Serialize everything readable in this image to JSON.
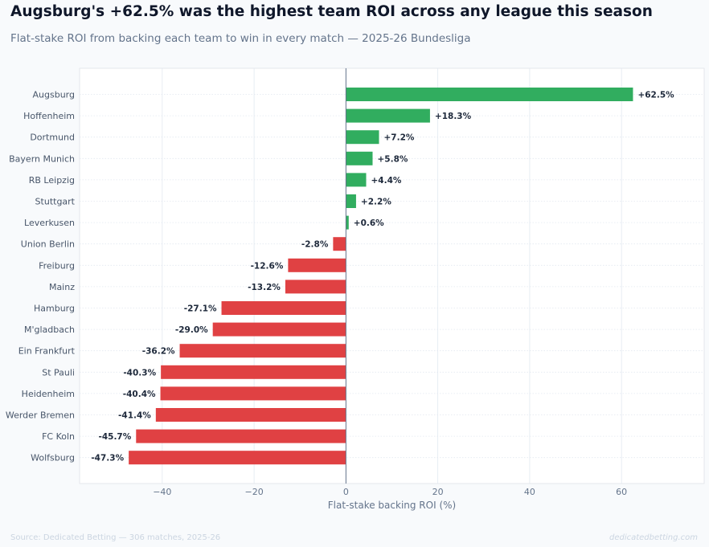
{
  "header": {
    "title": "Augsburg's +62.5% was the highest team ROI across any league this season",
    "subtitle": "Flat-stake ROI from backing each team to win in every match — 2025-26 Bundesliga"
  },
  "footer": {
    "source": "Source: Dedicated Betting — 306 matches, 2025-26",
    "brand": "dedicatedbetting.com"
  },
  "colors": {
    "positive": "#31ad5f",
    "negative": "#e04143",
    "grid": "#e2e8f0",
    "zero_line": "#64748b"
  },
  "chart_data": {
    "type": "bar",
    "orientation": "horizontal",
    "title": "Augsburg's +62.5% was the highest team ROI across any league this season",
    "subtitle": "Flat-stake ROI from backing each team to win in every match — 2025-26 Bundesliga",
    "xlabel": "Flat-stake backing ROI (%)",
    "ylabel": "",
    "xlim": [
      -58,
      78
    ],
    "xticks": [
      -40,
      -20,
      0,
      20,
      40,
      60
    ],
    "xtick_labels": [
      "−40",
      "−20",
      "0",
      "20",
      "40",
      "60"
    ],
    "grid": true,
    "categories": [
      "Augsburg",
      "Hoffenheim",
      "Dortmund",
      "Bayern Munich",
      "RB Leipzig",
      "Stuttgart",
      "Leverkusen",
      "Union Berlin",
      "Freiburg",
      "Mainz",
      "Hamburg",
      "M'gladbach",
      "Ein Frankfurt",
      "St Pauli",
      "Heidenheim",
      "Werder Bremen",
      "FC Koln",
      "Wolfsburg"
    ],
    "values": [
      62.5,
      18.3,
      7.2,
      5.8,
      4.4,
      2.2,
      0.6,
      -2.8,
      -12.6,
      -13.2,
      -27.1,
      -29.0,
      -36.2,
      -40.3,
      -40.4,
      -41.4,
      -45.7,
      -47.3
    ],
    "value_labels": [
      "+62.5%",
      "+18.3%",
      "+7.2%",
      "+5.8%",
      "+4.4%",
      "+2.2%",
      "+0.6%",
      "-2.8%",
      "-12.6%",
      "-13.2%",
      "-27.1%",
      "-29.0%",
      "-36.2%",
      "-40.3%",
      "-40.4%",
      "-41.4%",
      "-45.7%",
      "-47.3%"
    ]
  }
}
